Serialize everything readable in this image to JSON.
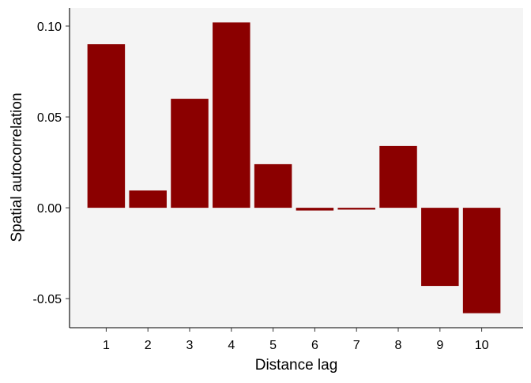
{
  "chart_data": {
    "type": "bar",
    "xlabel": "Distance lag",
    "ylabel": "Spatial autocorrelation",
    "categories": [
      "1",
      "2",
      "3",
      "4",
      "5",
      "6",
      "7",
      "8",
      "9",
      "10"
    ],
    "values": [
      0.09,
      0.0095,
      0.06,
      0.102,
      0.024,
      -0.0015,
      -0.001,
      0.034,
      -0.043,
      -0.058
    ],
    "ylim": [
      -0.066,
      0.11
    ],
    "yticks": [
      -0.05,
      0.0,
      0.05,
      0.1
    ],
    "ytick_labels": [
      "-0.05",
      "0.00",
      "0.05",
      "0.10"
    ],
    "grid": false,
    "legend": "none",
    "colors": {
      "bar": "#8B0000",
      "panel_background": "#F4F4F4",
      "axis_line": "#000000"
    }
  }
}
